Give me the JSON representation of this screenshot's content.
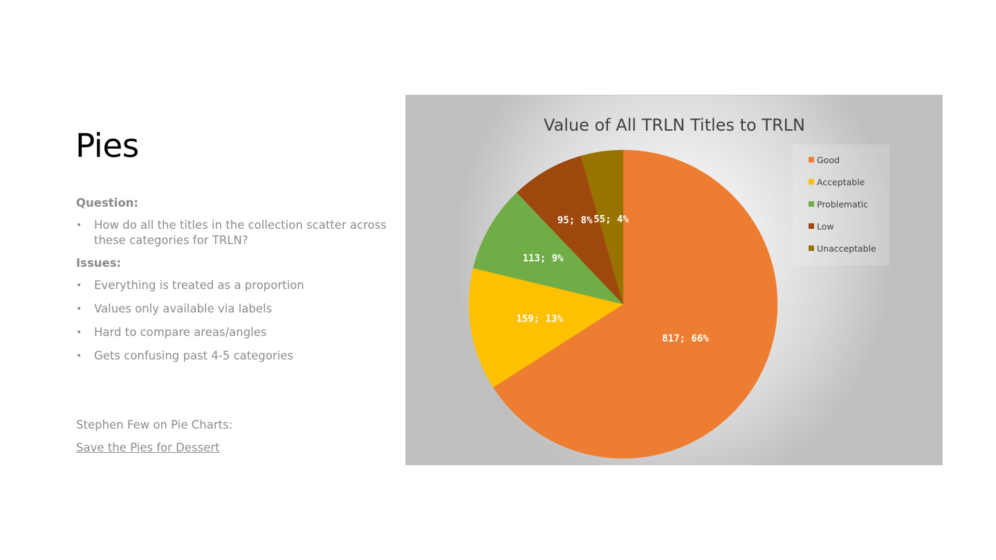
{
  "slide": {
    "title": "Pies",
    "question_heading": "Question:",
    "questions": [
      "How do all the titles in the collection scatter across these categories for TRLN?"
    ],
    "issues_heading": "Issues:",
    "issues": [
      "Everything is treated as a proportion",
      "Values only available via labels",
      "Hard to compare areas/angles",
      "Gets confusing past 4-5 categories"
    ],
    "bullet_glyph": "•",
    "credit": "Stephen Few on Pie Charts:",
    "link_text": "Save the Pies for Dessert"
  },
  "chart_data": {
    "type": "pie",
    "title": "Value of All TRLN Titles to TRLN",
    "categories": [
      "Good",
      "Acceptable",
      "Problematic",
      "Low",
      "Unacceptable"
    ],
    "values": [
      817,
      159,
      113,
      95,
      55
    ],
    "labels": [
      "817; 66%",
      "159; 13%",
      "113; 9%",
      "95; 8%",
      "55; 4%"
    ],
    "colors": [
      "#ED7D31",
      "#FFC000",
      "#70AD47",
      "#9E480E",
      "#997300"
    ],
    "start_angle": "12 o'clock",
    "direction": "clockwise",
    "legend_position": "top-right"
  }
}
